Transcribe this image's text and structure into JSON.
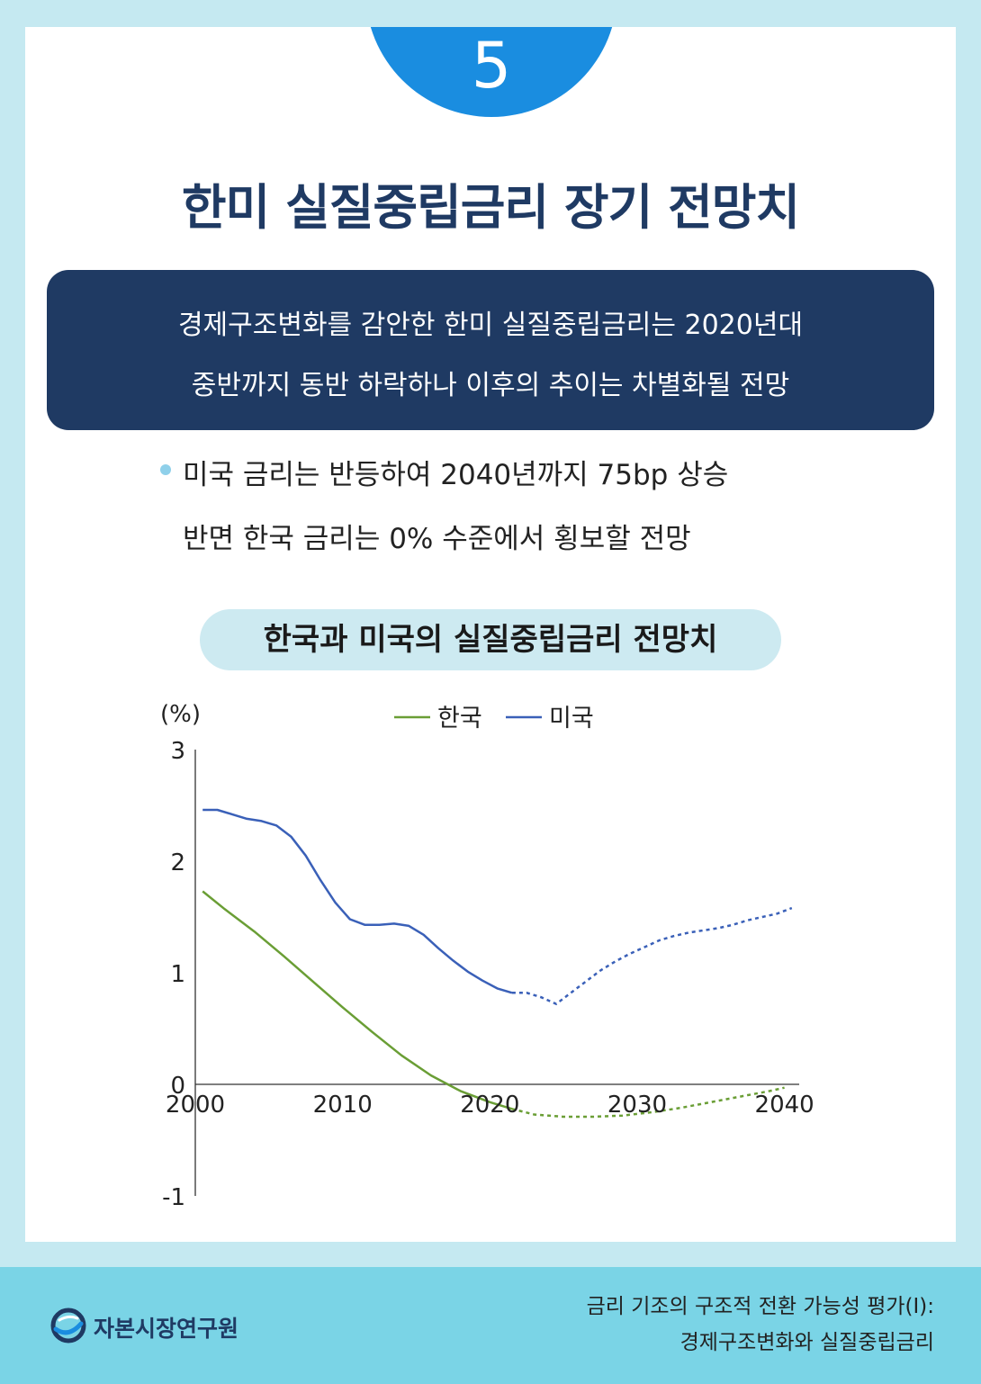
{
  "header": {
    "number": "5",
    "title": "한미 실질중립금리 장기 전망치"
  },
  "summary": {
    "line1": "경제구조변화를 감안한 한미 실질중립금리는 2020년대",
    "line2": "중반까지 동반 하락하나 이후의 추이는 차별화될 전망"
  },
  "bullet": {
    "line1": "미국 금리는 반등하여 2040년까지 75bp 상승",
    "line2": "반면 한국 금리는 0% 수준에서 횡보할 전망"
  },
  "chart_title": "한국과 미국의 실질중립금리 전망치",
  "colors": {
    "korea": "#6a9e35",
    "usa": "#3a60b8",
    "navy": "#1f3a63",
    "accent": "#1a8de0"
  },
  "chart_data": {
    "type": "line",
    "title": "한국과 미국의 실질중립금리 전망치",
    "ylabel": "(%)",
    "xlabel": "",
    "ylim": [
      -1,
      3
    ],
    "xlim": [
      2000,
      2041
    ],
    "yticks": [
      "3",
      "2",
      "1",
      "0",
      "-1"
    ],
    "xticks": [
      "2000",
      "2010",
      "2020",
      "2030",
      "2040"
    ],
    "legend": [
      "한국",
      "미국"
    ],
    "legend_position": "top-center",
    "series": [
      {
        "name": "한국",
        "actual": {
          "x": [
            2000.5,
            2002,
            2004,
            2006,
            2008,
            2010,
            2012,
            2014,
            2016,
            2018,
            2020,
            2021.5
          ],
          "y": [
            1.73,
            1.57,
            1.37,
            1.15,
            0.92,
            0.69,
            0.47,
            0.26,
            0.08,
            -0.06,
            -0.16,
            -0.22
          ]
        },
        "forecast": {
          "x": [
            2021.5,
            2023,
            2025,
            2027,
            2029,
            2031,
            2033,
            2035,
            2037,
            2039,
            2040
          ],
          "y": [
            -0.22,
            -0.27,
            -0.29,
            -0.29,
            -0.28,
            -0.25,
            -0.21,
            -0.16,
            -0.11,
            -0.06,
            -0.03
          ]
        }
      },
      {
        "name": "미국",
        "actual": {
          "x": [
            2000.5,
            2001.5,
            2002.5,
            2003.5,
            2004.5,
            2005.5,
            2006.5,
            2007.5,
            2008.5,
            2009.5,
            2010.5,
            2011.5,
            2012.5,
            2013.5,
            2014.5,
            2015.5,
            2016.5,
            2017.5,
            2018.5,
            2019.5,
            2020.5,
            2021.5
          ],
          "y": [
            2.46,
            2.46,
            2.42,
            2.38,
            2.36,
            2.32,
            2.22,
            2.05,
            1.83,
            1.63,
            1.48,
            1.43,
            1.43,
            1.44,
            1.42,
            1.34,
            1.22,
            1.11,
            1.01,
            0.93,
            0.86,
            0.82
          ]
        },
        "forecast": {
          "x": [
            2021.5,
            2022.5,
            2023.5,
            2024.5,
            2025.5,
            2026.5,
            2027.5,
            2028.5,
            2029.5,
            2030.5,
            2031.5,
            2032.5,
            2033.5,
            2034.5,
            2035.5,
            2036.5,
            2037.5,
            2038.5,
            2039.5,
            2040.5
          ],
          "y": [
            0.82,
            0.82,
            0.78,
            0.72,
            0.82,
            0.92,
            1.02,
            1.1,
            1.17,
            1.23,
            1.29,
            1.33,
            1.36,
            1.38,
            1.4,
            1.43,
            1.47,
            1.5,
            1.53,
            1.58
          ]
        }
      }
    ]
  },
  "footer": {
    "org": "자본시장연구원",
    "report_line1": "금리 기조의 구조적 전환 가능성 평가(I):",
    "report_line2": "경제구조변화와 실질중립금리"
  }
}
